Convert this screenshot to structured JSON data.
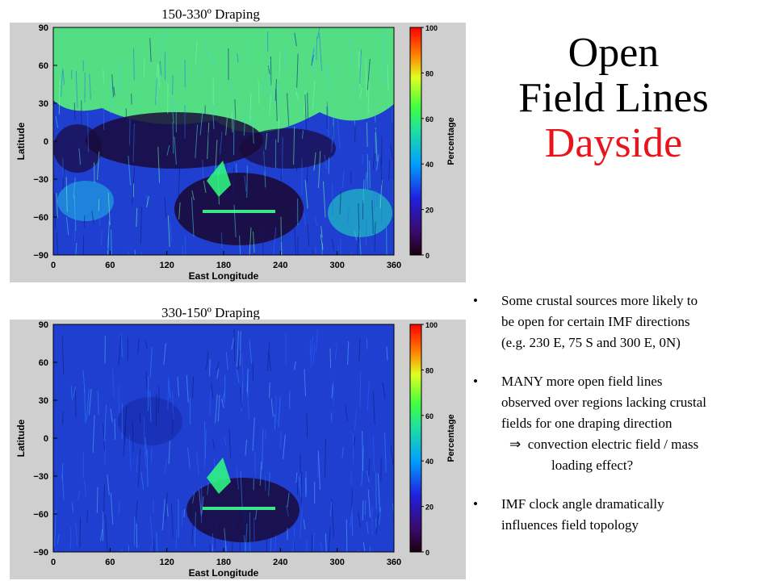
{
  "title": {
    "line1": "Open",
    "line2": "Field Lines",
    "line3": "Dayside"
  },
  "panels": [
    {
      "caption": "150-330º  Draping",
      "xlabel": "East Longitude",
      "ylabel": "Latitude",
      "colorbar_label": "Percentage",
      "x_ticks": [
        "0",
        "60",
        "120",
        "180",
        "240",
        "300",
        "360"
      ],
      "y_ticks": [
        "90",
        "60",
        "30",
        "0",
        "−30",
        "−60",
        "−90"
      ],
      "cbar_ticks": [
        "100",
        "80",
        "60",
        "40",
        "20",
        "0"
      ],
      "style": "green-north"
    },
    {
      "caption": "330-150º  Draping",
      "xlabel": "East Longitude",
      "ylabel": "Latitude",
      "colorbar_label": "Percentage",
      "x_ticks": [
        "0",
        "60",
        "120",
        "180",
        "240",
        "300",
        "360"
      ],
      "y_ticks": [
        "90",
        "60",
        "30",
        "0",
        "−30",
        "−60",
        "−90"
      ],
      "cbar_ticks": [
        "100",
        "80",
        "60",
        "40",
        "20",
        "0"
      ],
      "style": "blue"
    }
  ],
  "bullets": {
    "b1": [
      "Some crustal sources more likely to",
      "be open for certain IMF directions",
      "(e.g. 230 E, 75 S  and 300 E, 0N)"
    ],
    "b2": [
      "MANY more open field lines",
      "observed over regions lacking crustal",
      "fields for one draping direction"
    ],
    "b2_arrow": "⇒",
    "b2_cont1": "convection electric  field / mass",
    "b2_cont2": "loading effect?",
    "b3": [
      "IMF clock angle dramatically",
      "influences field topology"
    ],
    "marker": "•"
  },
  "colors": {
    "title_red": "#e8141c",
    "map_dark": "#1a0a3a",
    "map_blue": "#1f3fd0",
    "map_green": "#5af07a"
  }
}
